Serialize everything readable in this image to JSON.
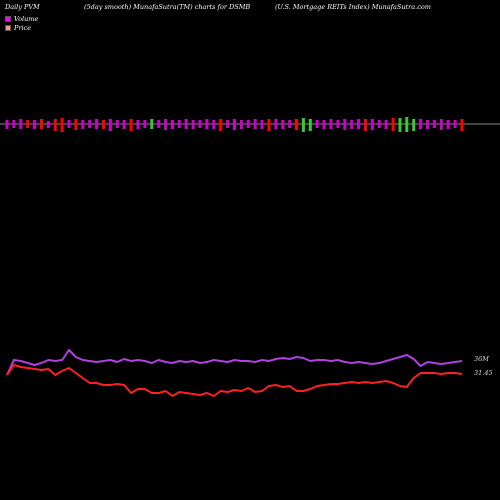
{
  "header": {
    "left": "Daily PVM",
    "middle": "(5day smooth) MunafaSutra(TM) charts for DSMB",
    "right": "(U.S. Mortgage   REITs Index) MunafaSutra.com"
  },
  "legend": [
    {
      "label": "Volume",
      "color": "#ff00ff"
    },
    {
      "label": "Price",
      "color": "#ffa07a"
    }
  ],
  "colors": {
    "up": "#cc00cc",
    "down_red": "#ff0000",
    "down_green": "#33cc33",
    "volume_line": "#b040e0",
    "price_line": "#ff2020",
    "axis": "#888888"
  },
  "chart_data": {
    "type": "line",
    "volume_bars": {
      "heights": [
        9,
        8,
        10,
        8,
        9,
        10,
        7,
        12,
        14,
        8,
        11,
        9,
        8,
        10,
        9,
        12,
        8,
        9,
        12,
        9,
        8,
        10,
        8,
        11,
        9,
        8,
        10,
        9,
        8,
        10,
        9,
        12,
        8,
        11,
        9,
        8,
        10,
        9,
        12,
        10,
        9,
        8,
        11,
        14,
        12,
        8,
        9,
        10,
        8,
        11,
        9,
        10,
        12,
        11,
        8,
        9,
        13,
        14,
        15,
        12,
        10,
        9,
        8,
        11,
        9,
        8,
        12
      ],
      "directions": [
        "m",
        "m",
        "m",
        "r",
        "m",
        "r",
        "m",
        "r",
        "r",
        "m",
        "r",
        "m",
        "m",
        "m",
        "r",
        "m",
        "m",
        "m",
        "r",
        "m",
        "m",
        "g",
        "m",
        "m",
        "m",
        "m",
        "m",
        "m",
        "m",
        "m",
        "m",
        "r",
        "m",
        "m",
        "m",
        "m",
        "m",
        "m",
        "r",
        "m",
        "m",
        "m",
        "r",
        "g",
        "g",
        "m",
        "m",
        "m",
        "m",
        "m",
        "m",
        "m",
        "r",
        "m",
        "m",
        "m",
        "r",
        "g",
        "g",
        "g",
        "m",
        "m",
        "m",
        "m",
        "m",
        "m",
        "r"
      ]
    },
    "volume_line": [
      375,
      360,
      361,
      363,
      365,
      363,
      360,
      361,
      360,
      350,
      357,
      360,
      361,
      362,
      361,
      360,
      362,
      359,
      361,
      360,
      361,
      363,
      360,
      362,
      363,
      361,
      362,
      361,
      363,
      362,
      360,
      361,
      362,
      360,
      361,
      361,
      362,
      360,
      361,
      359,
      358,
      359,
      357,
      358,
      361,
      360,
      360,
      361,
      360,
      362,
      363,
      362,
      363,
      364,
      363,
      361,
      359,
      357,
      355,
      359,
      366,
      362,
      363,
      364,
      363,
      362,
      361
    ],
    "price_line": [
      375,
      365,
      367,
      368,
      369,
      370,
      369,
      375,
      371,
      368,
      373,
      378,
      383,
      383,
      385,
      385,
      384,
      385,
      393,
      389,
      389,
      393,
      393,
      391,
      396,
      392,
      393,
      394,
      395,
      393,
      396,
      391,
      392,
      390,
      391,
      388,
      392,
      391,
      386,
      385,
      387,
      386,
      391,
      391,
      389,
      386,
      385,
      384,
      384,
      383,
      382,
      383,
      382,
      383,
      382,
      381,
      383,
      386,
      387,
      378,
      373,
      373,
      373,
      374,
      373,
      373,
      374
    ],
    "last_volume_label": "36M",
    "last_price_label": "31.45"
  }
}
